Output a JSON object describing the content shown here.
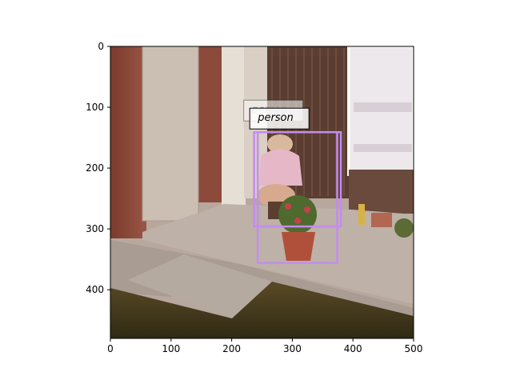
{
  "figure": {
    "x_ticks": [
      "0",
      "100",
      "200",
      "300",
      "400",
      "500"
    ],
    "y_ticks": [
      "0",
      "100",
      "200",
      "300",
      "400"
    ],
    "x_range": [
      0,
      500
    ],
    "y_range": [
      0,
      480
    ],
    "image_subject": "photo of a person crouching beside a flower pot at a house doorway",
    "box_color": "#c38cf0"
  },
  "detections": [
    {
      "label": "person",
      "x1": 237,
      "y1": 141,
      "x2": 380,
      "y2": 296
    },
    {
      "label": "person",
      "x1": 243,
      "y1": 141,
      "x2": 374,
      "y2": 356
    }
  ]
}
